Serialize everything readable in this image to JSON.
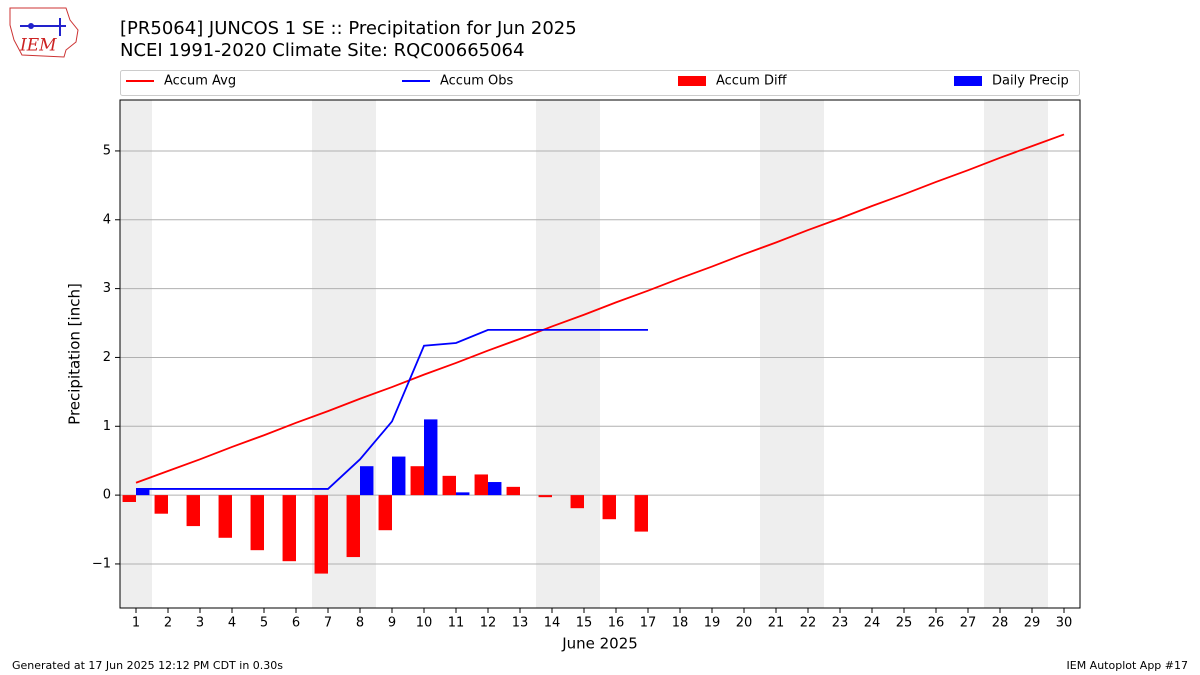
{
  "chart_data": {
    "type": "bar",
    "title": "[PR5064] JUNCOS 1 SE :: Precipitation for Jun 2025",
    "subtitle": "NCEI 1991-2020 Climate Site: RQC00665064",
    "logo_text": "IEM",
    "x_label": "June 2025",
    "y_label": "Precipitation [inch]",
    "footer_left": "Generated at 17 Jun 2025 12:12 PM CDT in 0.30s",
    "footer_right": "IEM Autoplot App #17",
    "categories": [
      "1",
      "2",
      "3",
      "4",
      "5",
      "6",
      "7",
      "8",
      "9",
      "10",
      "11",
      "12",
      "13",
      "14",
      "15",
      "16",
      "17",
      "18",
      "19",
      "20",
      "21",
      "22",
      "23",
      "24",
      "25",
      "26",
      "27",
      "28",
      "29",
      "30"
    ],
    "shaded_days": [
      1,
      7,
      8,
      14,
      15,
      21,
      22,
      28,
      29
    ],
    "shade_color": "#eeeeee",
    "ylim": [
      -1.64,
      5.74
    ],
    "yticks": [
      {
        "value": -1,
        "label": "−1"
      },
      0,
      1,
      2,
      3,
      4,
      5
    ],
    "grid": true,
    "legend": "top",
    "series": [
      {
        "name": "Accum Avg",
        "kind": "line",
        "color": "#ff0000",
        "values": [
          0.18,
          0.35,
          0.52,
          0.7,
          0.87,
          1.05,
          1.22,
          1.4,
          1.57,
          1.75,
          1.92,
          2.1,
          2.27,
          2.45,
          2.62,
          2.8,
          2.97,
          3.15,
          3.32,
          3.5,
          3.67,
          3.85,
          4.02,
          4.2,
          4.37,
          4.55,
          4.72,
          4.9,
          5.07,
          5.24
        ]
      },
      {
        "name": "Accum Obs",
        "kind": "line",
        "color": "#0000ff",
        "values": [
          0.09,
          0.09,
          0.09,
          0.09,
          0.09,
          0.09,
          0.09,
          0.52,
          1.07,
          2.17,
          2.21,
          2.4,
          2.4,
          2.4,
          2.4,
          2.4,
          2.4,
          null,
          null,
          null,
          null,
          null,
          null,
          null,
          null,
          null,
          null,
          null,
          null,
          null
        ]
      },
      {
        "name": "Accum Diff",
        "kind": "bar",
        "side": "left",
        "color": "#ff0000",
        "values": [
          -0.1,
          -0.27,
          -0.45,
          -0.62,
          -0.8,
          -0.96,
          -1.14,
          -0.9,
          -0.51,
          0.42,
          0.28,
          0.3,
          0.12,
          -0.03,
          -0.19,
          -0.35,
          -0.53,
          null,
          null,
          null,
          null,
          null,
          null,
          null,
          null,
          null,
          null,
          null,
          null,
          null
        ]
      },
      {
        "name": "Daily Precip",
        "kind": "bar",
        "side": "right",
        "color": "#0000ff",
        "values": [
          0.1,
          0,
          0,
          0,
          0,
          0,
          0,
          0.42,
          0.56,
          1.1,
          0.04,
          0.19,
          0,
          0,
          0,
          0,
          0,
          null,
          null,
          null,
          null,
          null,
          null,
          null,
          null,
          null,
          null,
          null,
          null,
          null
        ]
      }
    ]
  }
}
